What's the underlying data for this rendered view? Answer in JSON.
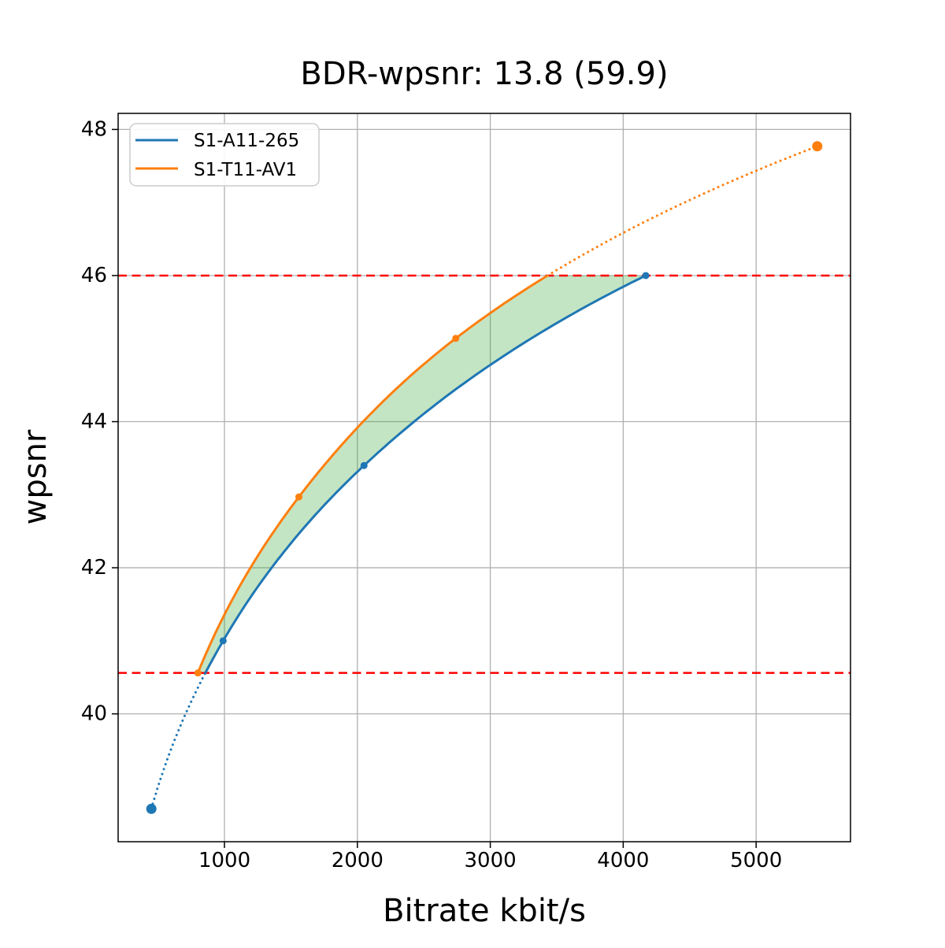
{
  "figure": {
    "background_color": "#ffffff",
    "plot_border_color": "#000000",
    "grid_color": "#b0b0b0"
  },
  "chart_data": {
    "type": "line",
    "title": "BDR-wpsnr: 13.8 (59.9)",
    "xlabel": "Bitrate kbit/s",
    "ylabel": "wpsnr",
    "xlim": [
      200,
      5710
    ],
    "ylim": [
      38.25,
      48.22
    ],
    "xticks": [
      1000,
      2000,
      3000,
      4000,
      5000
    ],
    "yticks": [
      40,
      42,
      44,
      46,
      48
    ],
    "grid": true,
    "legend_position": "upper left",
    "series": [
      {
        "name": "S1-A11-265",
        "color": "#1f77b4",
        "marker": "circle",
        "points": [
          [
            450,
            38.7
          ],
          [
            990,
            41.0
          ],
          [
            2050,
            43.4
          ],
          [
            4170,
            46.0
          ]
        ]
      },
      {
        "name": "S1-T11-AV1",
        "color": "#ff7f0e",
        "marker": "circle",
        "points": [
          [
            800,
            40.56
          ],
          [
            1560,
            42.97
          ],
          [
            2740,
            45.14
          ],
          [
            5460,
            47.77
          ]
        ]
      }
    ],
    "overlap_band": {
      "lower_wpsnr": 40.56,
      "upper_wpsnr": 46.0,
      "bound_line_color": "#ff0000",
      "bound_line_style": "dashed",
      "fill_color": "#2ca02c",
      "fill_opacity": 0.28
    },
    "style_notes": {
      "solid_segments": "curves solid between overlap bounds",
      "dotted_segments": "curves dotted outside overlap bounds"
    }
  }
}
